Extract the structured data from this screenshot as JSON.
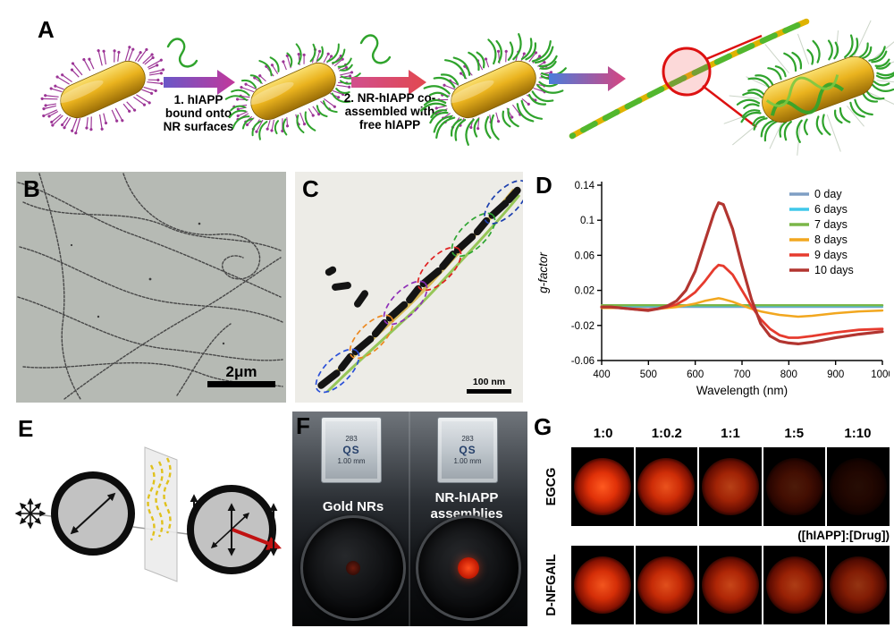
{
  "panelA": {
    "label": "A",
    "step1_lines": [
      "1. hIAPP",
      "bound onto",
      "NR surfaces"
    ],
    "step2_lines": [
      "2. NR-hIAPP co-",
      "assembled with",
      "free hIAPP"
    ]
  },
  "panelB": {
    "label": "B",
    "scale_bar": "2μm"
  },
  "panelC": {
    "label": "C",
    "scale_bar": "100 nm"
  },
  "panelD": {
    "label": "D"
  },
  "panelE": {
    "label": "E"
  },
  "panelF": {
    "label": "F",
    "cuvette_lines": [
      "283",
      "QS",
      "1.00 mm"
    ],
    "left_sample": "Gold NRs",
    "right_sample_lines": [
      "NR-hIAPP",
      "assemblies"
    ]
  },
  "panelG": {
    "label": "G",
    "columns": [
      "1:0",
      "1:0.2",
      "1:1",
      "1:5",
      "1:10"
    ],
    "ratio_note": "([hIAPP]:[Drug])",
    "rows": [
      {
        "label": "EGCG",
        "intensities": [
          1.0,
          0.92,
          0.72,
          0.3,
          0.15
        ]
      },
      {
        "label": "D-NFGAIL",
        "intensities": [
          0.95,
          0.88,
          0.78,
          0.68,
          0.58
        ]
      }
    ]
  },
  "chart_data": {
    "type": "line",
    "title": "",
    "xlabel": "Wavelength (nm)",
    "ylabel": "g-factor",
    "xlim": [
      400,
      1000
    ],
    "ylim": [
      -0.06,
      0.14
    ],
    "x_ticks": [
      400,
      500,
      600,
      700,
      800,
      900,
      1000
    ],
    "y_ticks": [
      -0.06,
      -0.02,
      0.02,
      0.06,
      0.1,
      0.14
    ],
    "grid": false,
    "legend_position": "top-right",
    "x": [
      400,
      420,
      440,
      460,
      480,
      500,
      520,
      540,
      560,
      580,
      600,
      620,
      640,
      650,
      660,
      680,
      700,
      720,
      740,
      760,
      780,
      800,
      820,
      850,
      900,
      950,
      1000
    ],
    "series": [
      {
        "name": "0 day",
        "color": "#7e9ec4",
        "width": 2,
        "values": [
          0.001,
          0.001,
          0.001,
          0.001,
          0.001,
          0.001,
          0.001,
          0.001,
          0.001,
          0.001,
          0.001,
          0.001,
          0.001,
          0.001,
          0.001,
          0.001,
          0.001,
          0.001,
          0.001,
          0.001,
          0.001,
          0.001,
          0.001,
          0.001,
          0.001,
          0.001,
          0.001
        ]
      },
      {
        "name": "6 days",
        "color": "#3fc8ea",
        "width": 2,
        "values": [
          0.002,
          0.002,
          0.002,
          0.002,
          0.002,
          0.002,
          0.002,
          0.002,
          0.002,
          0.002,
          0.002,
          0.002,
          0.002,
          0.002,
          0.002,
          0.002,
          0.002,
          0.002,
          0.002,
          0.002,
          0.002,
          0.002,
          0.002,
          0.002,
          0.002,
          0.002,
          0.002
        ]
      },
      {
        "name": "7 days",
        "color": "#7ab648",
        "width": 2.5,
        "values": [
          0.003,
          0.003,
          0.003,
          0.003,
          0.003,
          0.003,
          0.003,
          0.003,
          0.003,
          0.003,
          0.003,
          0.003,
          0.003,
          0.003,
          0.003,
          0.003,
          0.003,
          0.003,
          0.003,
          0.003,
          0.003,
          0.003,
          0.003,
          0.003,
          0.003,
          0.003,
          0.003
        ]
      },
      {
        "name": "8 days",
        "color": "#f2a71f",
        "width": 2.5,
        "values": [
          0,
          0,
          0,
          -0.001,
          -0.001,
          -0.002,
          -0.001,
          0,
          0.001,
          0.003,
          0.005,
          0.008,
          0.01,
          0.011,
          0.01,
          0.007,
          0.003,
          -0.001,
          -0.004,
          -0.006,
          -0.008,
          -0.009,
          -0.01,
          -0.009,
          -0.006,
          -0.004,
          -0.003
        ]
      },
      {
        "name": "9 days",
        "color": "#e63b2e",
        "width": 2.8,
        "values": [
          0.001,
          0.001,
          0,
          -0.001,
          -0.002,
          -0.002,
          -0.001,
          0.001,
          0.004,
          0.01,
          0.018,
          0.03,
          0.044,
          0.049,
          0.048,
          0.038,
          0.02,
          0.002,
          -0.013,
          -0.024,
          -0.031,
          -0.034,
          -0.034,
          -0.032,
          -0.028,
          -0.025,
          -0.024
        ]
      },
      {
        "name": "10 days",
        "color": "#b23530",
        "width": 3.2,
        "values": [
          0.001,
          0.001,
          0,
          -0.001,
          -0.002,
          -0.003,
          -0.001,
          0.002,
          0.008,
          0.02,
          0.042,
          0.075,
          0.108,
          0.12,
          0.118,
          0.09,
          0.048,
          0.01,
          -0.018,
          -0.032,
          -0.038,
          -0.04,
          -0.041,
          -0.039,
          -0.034,
          -0.03,
          -0.027
        ]
      }
    ]
  }
}
